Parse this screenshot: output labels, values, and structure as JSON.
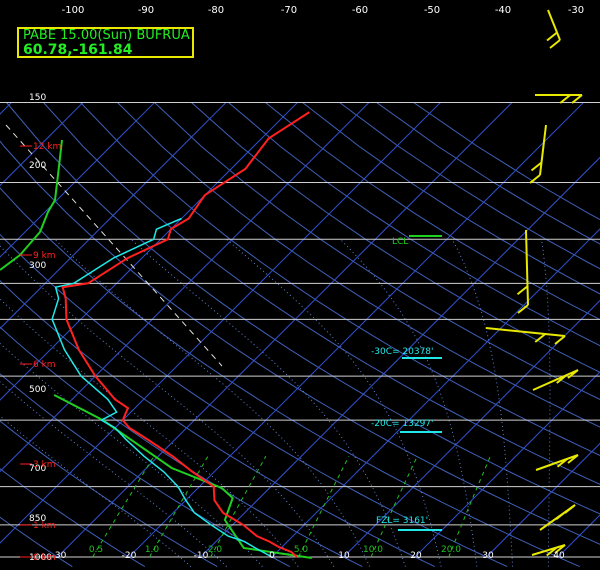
{
  "chart_data": {
    "type": "skew-t log-p sounding",
    "station": {
      "line1": "PABE 15.00(Sun) BUFRUA",
      "line2": "60.78,-161.84"
    },
    "top_temperature_labels": [
      "-100",
      "-90",
      "-80",
      "-70",
      "-60",
      "-50",
      "-40",
      "-30"
    ],
    "bottom_temperature_labels": [
      "-30",
      "-20",
      "-10",
      "0",
      "10",
      "20",
      "30",
      "40"
    ],
    "pressure_labels": [
      "150",
      "200",
      "300",
      "500",
      "700",
      "850",
      "1000"
    ],
    "height_labels": [
      "12 km",
      "9 km",
      "6 km",
      "3 km",
      "1 km",
      "0 km"
    ],
    "mixing_ratio_labels": [
      "0.5",
      "1.0",
      "2.0",
      "5.0",
      "10.0",
      "20.0"
    ],
    "annotations": {
      "lcl": "LCL",
      "minus30": "-30C= 20378'",
      "minus20": "-20C= 13297'",
      "freezing": "FZL= 3161'"
    },
    "temperature_profile": [
      {
        "p": 1000,
        "t": 3.5
      },
      {
        "p": 975,
        "t": 2
      },
      {
        "p": 950,
        "t": -0.5
      },
      {
        "p": 925,
        "t": -2.5
      },
      {
        "p": 900,
        "t": -5
      },
      {
        "p": 850,
        "t": -8.5
      },
      {
        "p": 800,
        "t": -13
      },
      {
        "p": 750,
        "t": -16
      },
      {
        "p": 700,
        "t": -18
      },
      {
        "p": 650,
        "t": -23
      },
      {
        "p": 600,
        "t": -28
      },
      {
        "p": 550,
        "t": -34
      },
      {
        "p": 520,
        "t": -38
      },
      {
        "p": 500,
        "t": -40
      },
      {
        "p": 470,
        "t": -41
      },
      {
        "p": 450,
        "t": -44
      },
      {
        "p": 400,
        "t": -50
      },
      {
        "p": 350,
        "t": -56
      },
      {
        "p": 300,
        "t": -62
      },
      {
        "p": 270,
        "t": -65
      },
      {
        "p": 255,
        "t": -67
      },
      {
        "p": 250,
        "t": -64
      },
      {
        "p": 220,
        "t": -62
      },
      {
        "p": 200,
        "t": -59
      },
      {
        "p": 190,
        "t": -60
      },
      {
        "p": 180,
        "t": -59
      },
      {
        "p": 160,
        "t": -60
      },
      {
        "p": 140,
        "t": -58
      },
      {
        "p": 120,
        "t": -59
      },
      {
        "p": 105,
        "t": -57
      }
    ],
    "dewpoint_profile": [
      {
        "p": 1000,
        "t": 0
      },
      {
        "p": 975,
        "t": -2
      },
      {
        "p": 950,
        "t": -4
      },
      {
        "p": 925,
        "t": -6
      },
      {
        "p": 900,
        "t": -9
      },
      {
        "p": 850,
        "t": -13
      },
      {
        "p": 800,
        "t": -17
      },
      {
        "p": 750,
        "t": -20
      },
      {
        "p": 700,
        "t": -23
      },
      {
        "p": 650,
        "t": -27
      },
      {
        "p": 600,
        "t": -32
      },
      {
        "p": 550,
        "t": -37
      },
      {
        "p": 520,
        "t": -40
      },
      {
        "p": 500,
        "t": -43
      },
      {
        "p": 480,
        "t": -42
      },
      {
        "p": 450,
        "t": -45
      },
      {
        "p": 400,
        "t": -52
      },
      {
        "p": 350,
        "t": -58
      },
      {
        "p": 300,
        "t": -64
      },
      {
        "p": 270,
        "t": -66
      },
      {
        "p": 255,
        "t": -68
      },
      {
        "p": 250,
        "t": -66
      },
      {
        "p": 220,
        "t": -64
      },
      {
        "p": 200,
        "t": -61
      },
      {
        "p": 190,
        "t": -62
      },
      {
        "p": 180,
        "t": -60
      }
    ],
    "isobars": [
      100,
      150,
      200,
      250,
      300,
      400,
      500,
      700,
      850,
      1000
    ],
    "skew_degrees": 45,
    "colors": {
      "temperature": "#ff2020",
      "dewpoint": "#20e8e8",
      "isobar": "#d0d0d0",
      "isotherm": "#3050d0",
      "dry_adiabat": "#4060b8",
      "moist_adiabat": "#6080d0",
      "mixing_ratio": "#20c020",
      "parcel_path": "#e0e0e0",
      "wind_barb": "#e8e800",
      "height_marker": "#ff2020",
      "annotation_line": "#20e8e8",
      "lcl_line": "#20d020"
    }
  }
}
